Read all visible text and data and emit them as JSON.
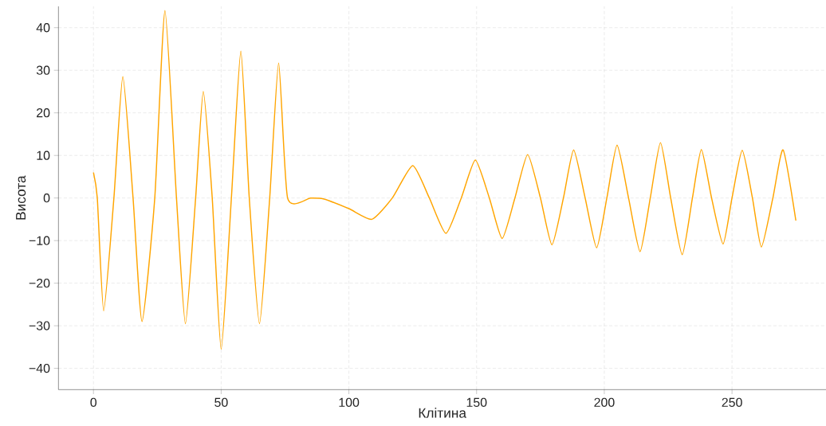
{
  "chart_data": {
    "type": "line",
    "xlabel": "Клітина",
    "ylabel": "Висота",
    "x": [
      0,
      1.5,
      4,
      8,
      11.5,
      15.5,
      19,
      24,
      28,
      32.5,
      36,
      40,
      43,
      46.5,
      50,
      54,
      57.7,
      61,
      65,
      69,
      72.5,
      76,
      85,
      90,
      100,
      109,
      117,
      125,
      131.5,
      138,
      144,
      149.5,
      155,
      160,
      165,
      170,
      175,
      179.5,
      184,
      188,
      192.5,
      197,
      201,
      205,
      209.5,
      214,
      218,
      222,
      226,
      230.5,
      234.5,
      238,
      242,
      246.5,
      250,
      254,
      258,
      261.5,
      266,
      270,
      275
    ],
    "series": [
      {
        "color": "#ffa500",
        "values": [
          6,
          0,
          -26.5,
          0,
          28.5,
          0,
          -29,
          0,
          44,
          0,
          -29.5,
          0,
          25,
          0,
          -35.5,
          0,
          34.5,
          0,
          -29.5,
          0,
          31.7,
          0,
          0,
          -0.2,
          -2.5,
          -5,
          0,
          7.6,
          0,
          -8.3,
          0,
          8.9,
          0,
          -9.5,
          0,
          10.2,
          0,
          -11,
          0,
          11.3,
          0,
          -11.7,
          0,
          12.4,
          0,
          -12.6,
          0,
          13,
          0,
          -13.3,
          0,
          11.4,
          0,
          -10.8,
          0,
          11.2,
          0,
          -11.5,
          0,
          11.3,
          -5.3
        ]
      }
    ],
    "xlim": [
      -13.7,
      286.8
    ],
    "ylim": [
      -45,
      45
    ],
    "xticks": [
      0,
      50,
      100,
      150,
      200,
      250
    ],
    "yticks": [
      {
        "value": -40,
        "label": "−40"
      },
      {
        "value": -30,
        "label": "−30"
      },
      {
        "value": -20,
        "label": "−20"
      },
      {
        "value": -10,
        "label": "−10"
      },
      0,
      10,
      20,
      30,
      40
    ],
    "grid": true,
    "line_style": "solid",
    "marker": "none"
  }
}
